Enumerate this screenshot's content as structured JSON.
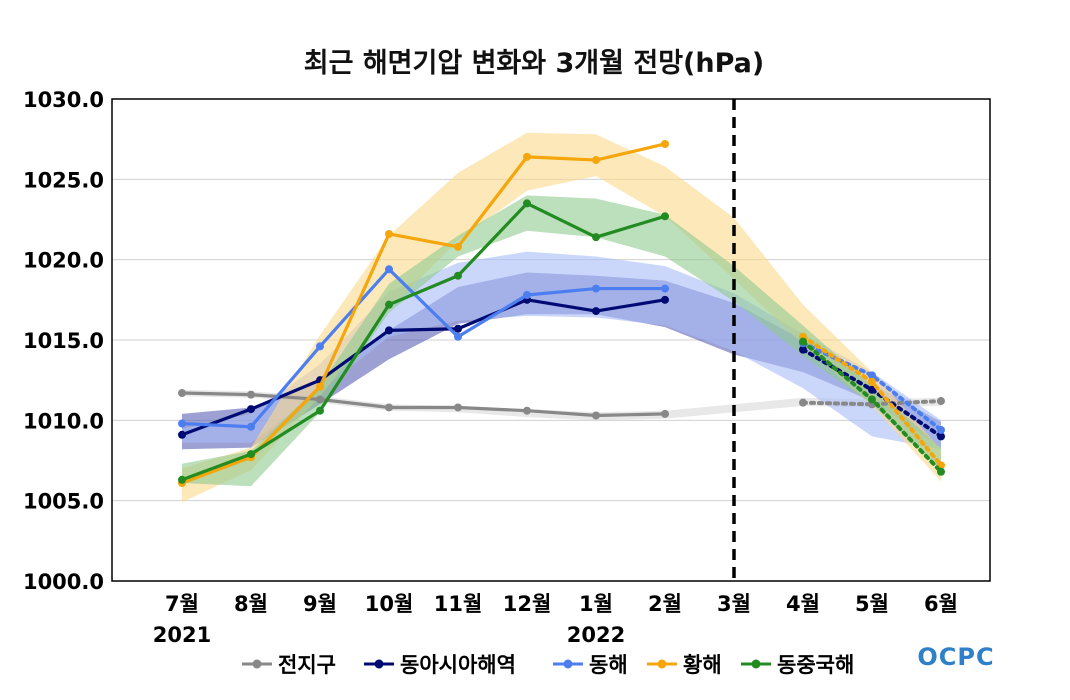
{
  "chart_data": {
    "type": "line",
    "title": "최근 해면기압 변화와 3개월 전망(hPa)",
    "categories": [
      "7월",
      "8월",
      "9월",
      "10월",
      "11월",
      "12월",
      "1월",
      "2월",
      "3월",
      "4월",
      "5월",
      "6월"
    ],
    "year_labels": [
      {
        "category_index": 0,
        "text": "2021"
      },
      {
        "category_index": 6,
        "text": "2022"
      }
    ],
    "ylim": [
      1000.0,
      1030.0
    ],
    "yticks": [
      "1000.0",
      "1005.0",
      "1010.0",
      "1015.0",
      "1020.0",
      "1025.0",
      "1030.0"
    ],
    "forecast_start_index": 8,
    "grid": true,
    "legend_position": "bottom",
    "series": [
      {
        "name": "전지구",
        "color": "#888888",
        "observed": [
          1011.7,
          1011.6,
          1011.3,
          1010.8,
          1010.8,
          1010.6,
          1010.3,
          1010.4
        ],
        "forecast": [
          1011.1,
          1011.0,
          1011.2
        ],
        "band": {
          "color": "#d9d9d9",
          "upper": [
            1011.9,
            1011.8,
            1011.5,
            1011.0,
            1010.9,
            1010.7,
            1010.5,
            1010.6,
            1011.0,
            1011.4,
            1011.3,
            1011.4
          ],
          "lower": [
            1011.5,
            1011.4,
            1011.1,
            1010.6,
            1010.5,
            1010.2,
            1010.0,
            1010.1,
            1010.5,
            1010.9,
            1010.8,
            1010.9
          ]
        }
      },
      {
        "name": "동아시아해역",
        "color": "#000a73",
        "observed": [
          1009.1,
          1010.7,
          1012.5,
          1015.6,
          1015.7,
          1017.5,
          1016.8,
          1017.5
        ],
        "forecast": [
          1014.4,
          1011.9,
          1009.0
        ],
        "band": {
          "color": "#5a61b5",
          "upper": [
            1010.4,
            1010.8,
            1012.6,
            1015.6,
            1018.3,
            1019.2,
            1019.0,
            1018.7,
            1017.3,
            1015.0,
            1012.3,
            1009.9
          ],
          "lower": [
            1008.2,
            1008.3,
            1011.0,
            1013.8,
            1016.0,
            1016.6,
            1016.6,
            1015.8,
            1014.1,
            1013.0,
            1011.2,
            1008.3
          ]
        }
      },
      {
        "name": "동해",
        "color": "#4d7ef0",
        "observed": [
          1009.8,
          1009.6,
          1014.6,
          1019.4,
          1015.2,
          1017.8,
          1018.2,
          1018.2
        ],
        "forecast": [
          1014.8,
          1012.8,
          1009.4
        ],
        "band": {
          "color": "#a8bdf6",
          "upper": [
            1009.5,
            1010.4,
            1013.5,
            1018.0,
            1019.8,
            1020.5,
            1020.2,
            1019.6,
            1017.9,
            1015.4,
            1013.0,
            1010.0
          ],
          "lower": [
            1008.6,
            1008.6,
            1011.8,
            1015.2,
            1016.2,
            1016.5,
            1016.4,
            1015.9,
            1014.3,
            1012.0,
            1009.0,
            1008.2
          ]
        }
      },
      {
        "name": "황해",
        "color": "#f4a60c",
        "observed": [
          1006.1,
          1007.7,
          1012.1,
          1021.6,
          1020.8,
          1026.4,
          1026.2,
          1027.2
        ],
        "forecast": [
          1015.2,
          1012.4,
          1007.2
        ],
        "band": {
          "color": "#fbd98a",
          "upper": [
            1007.0,
            1008.3,
            1015.3,
            1021.5,
            1025.4,
            1027.9,
            1027.8,
            1025.8,
            1022.6,
            1017.2,
            1013.0,
            1008.2
          ],
          "lower": [
            1004.9,
            1006.9,
            1011.5,
            1016.9,
            1021.2,
            1024.3,
            1025.2,
            1022.7,
            1018.8,
            1014.7,
            1010.9,
            1006.2
          ]
        }
      },
      {
        "name": "동중국해",
        "color": "#228b22",
        "observed": [
          1006.3,
          1007.9,
          1010.6,
          1017.2,
          1019.0,
          1023.5,
          1021.4,
          1022.7
        ],
        "forecast": [
          1014.9,
          1011.3,
          1006.8
        ],
        "band": {
          "color": "#8fca8f",
          "upper": [
            1007.3,
            1008.1,
            1012.2,
            1018.5,
            1021.5,
            1024.0,
            1023.8,
            1022.8,
            1019.6,
            1015.9,
            1012.1,
            1008.3
          ],
          "lower": [
            1006.1,
            1005.9,
            1010.5,
            1016.7,
            1020.2,
            1021.8,
            1021.4,
            1020.2,
            1017.4,
            1014.0,
            1011.0,
            1006.9
          ]
        }
      }
    ]
  },
  "logo": {
    "text": "OCPC"
  }
}
